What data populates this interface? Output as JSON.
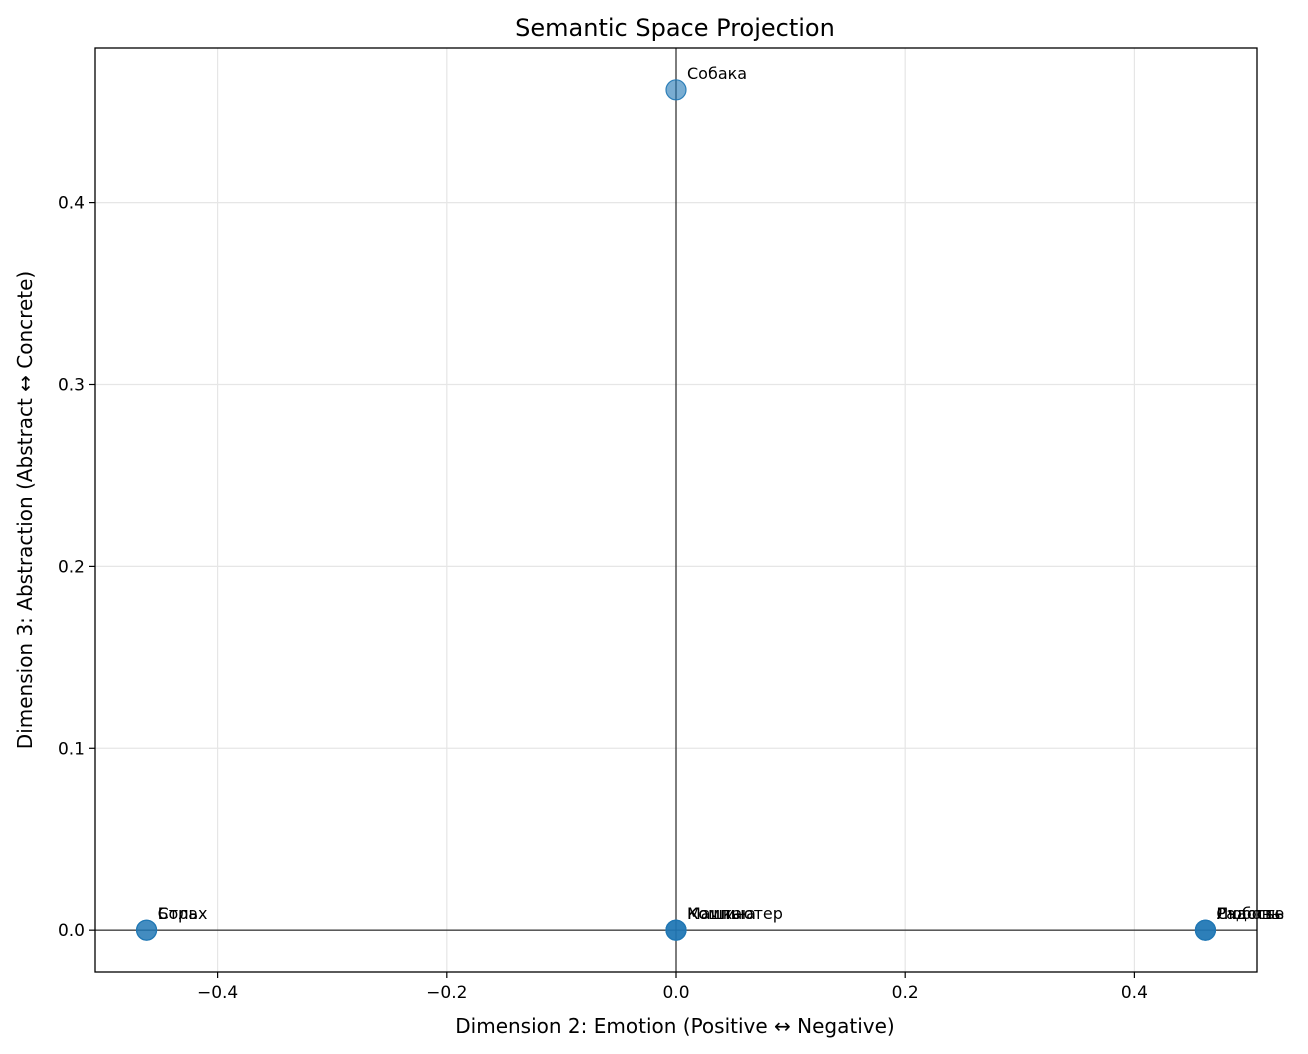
{
  "chart_data": {
    "type": "scatter",
    "title": "Semantic Space Projection",
    "xlabel": "Dimension 2: Emotion (Positive ↔ Negative)",
    "ylabel": "Dimension 3: Abstraction (Abstract ↔ Concrete)",
    "xlim": [
      -0.507,
      0.507
    ],
    "ylim": [
      -0.023,
      0.485
    ],
    "xticks": [
      -0.4,
      -0.2,
      0.0,
      0.2,
      0.4
    ],
    "xtick_labels": [
      "−0.4",
      "−0.2",
      "0.0",
      "0.2",
      "0.4"
    ],
    "yticks": [
      0.0,
      0.1,
      0.2,
      0.3,
      0.4
    ],
    "ytick_labels": [
      "0.0",
      "0.1",
      "0.2",
      "0.3",
      "0.4"
    ],
    "grid": true,
    "reference_lines": {
      "x": 0,
      "y": 0
    },
    "marker_color": "#1f77b4",
    "marker_alpha": 0.6,
    "points": [
      {
        "label": "Собака",
        "x": 0.0,
        "y": 0.462
      },
      {
        "label": "Страх",
        "x": -0.462,
        "y": 0.0
      },
      {
        "label": "Боль",
        "x": -0.462,
        "y": 0.0
      },
      {
        "label": "Компьютер",
        "x": 0.0,
        "y": 0.0
      },
      {
        "label": "Кошка",
        "x": 0.0,
        "y": 0.0
      },
      {
        "label": "Машина",
        "x": 0.0,
        "y": 0.0
      },
      {
        "label": "Любовь",
        "x": 0.462,
        "y": 0.0
      },
      {
        "label": "Радость",
        "x": 0.462,
        "y": 0.0
      },
      {
        "label": "Счастье",
        "x": 0.462,
        "y": 0.0
      }
    ]
  }
}
